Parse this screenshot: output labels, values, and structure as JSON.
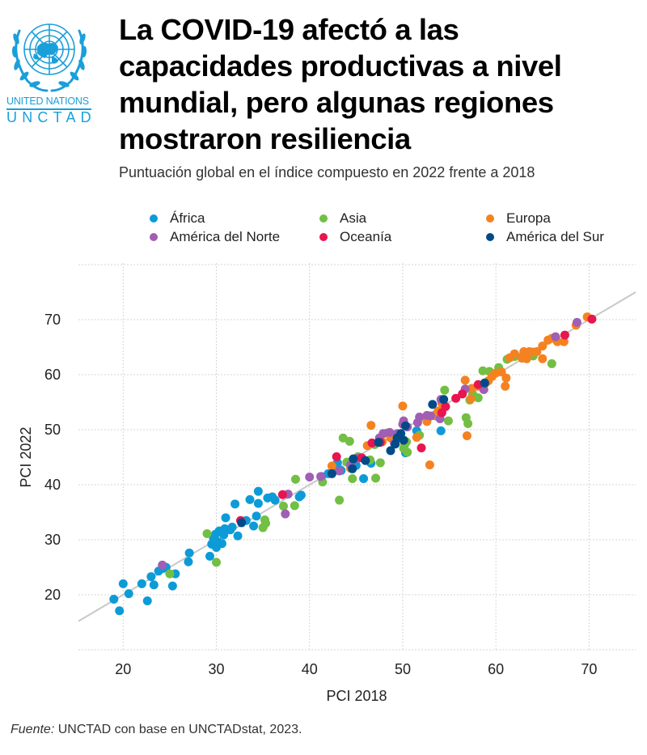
{
  "logo": {
    "line1": "UNITED NATIONS",
    "line2": "UNCTAD",
    "color": "#1a9fda",
    "icon": "un-emblem-icon"
  },
  "title": "La COVID-19 afectó a las capacidades productivas a nivel mundial, pero algunas regiones mostraron resiliencia",
  "subtitle": "Puntuación global en el índice compuesto en 2022 frente a 2018",
  "source": {
    "label": "Fuente:",
    "text": " UNCTAD con base en UNCTADstat, 2023."
  },
  "chart_data": {
    "type": "scatter",
    "title": "La COVID-19 afectó a las capacidades productivas a nivel mundial, pero algunas regiones mostraron resiliencia",
    "subtitle": "Puntuación global en el índice compuesto en 2022 frente a 2018",
    "xlabel": "PCI 2018",
    "ylabel": "PCI 2022",
    "xlim": [
      15.2,
      75
    ],
    "ylim": [
      10,
      80.3
    ],
    "xticks": [
      20,
      30,
      40,
      50,
      60,
      70
    ],
    "yticks": [
      20,
      30,
      40,
      50,
      60,
      70
    ],
    "grid": true,
    "legend_position": "top",
    "reference_line": {
      "label": "y = x",
      "color": "#c8c8c8"
    },
    "series": [
      {
        "name": "África",
        "color": "#0d9bd8",
        "points": [
          [
            19.0,
            19.2
          ],
          [
            19.6,
            17.1
          ],
          [
            20.0,
            22.0
          ],
          [
            20.6,
            20.2
          ],
          [
            22.0,
            22.0
          ],
          [
            22.6,
            18.9
          ],
          [
            23.0,
            23.3
          ],
          [
            23.3,
            21.8
          ],
          [
            23.8,
            24.3
          ],
          [
            24.3,
            24.8
          ],
          [
            24.6,
            25.0
          ],
          [
            25.3,
            21.6
          ],
          [
            25.6,
            23.8
          ],
          [
            27.0,
            26.0
          ],
          [
            27.1,
            27.6
          ],
          [
            29.3,
            27.0
          ],
          [
            29.5,
            29.2
          ],
          [
            29.7,
            30.2
          ],
          [
            29.9,
            31.0
          ],
          [
            30.0,
            28.6
          ],
          [
            30.2,
            29.6
          ],
          [
            30.3,
            31.6
          ],
          [
            30.6,
            29.3
          ],
          [
            30.8,
            30.9
          ],
          [
            30.9,
            32.0
          ],
          [
            31.0,
            34.0
          ],
          [
            31.5,
            31.8
          ],
          [
            31.7,
            32.3
          ],
          [
            32.0,
            36.5
          ],
          [
            32.3,
            30.7
          ],
          [
            33.2,
            33.5
          ],
          [
            33.6,
            37.3
          ],
          [
            34.0,
            32.5
          ],
          [
            34.3,
            34.3
          ],
          [
            34.5,
            38.8
          ],
          [
            34.5,
            36.6
          ],
          [
            35.5,
            37.6
          ],
          [
            36.0,
            37.8
          ],
          [
            36.3,
            37.2
          ],
          [
            38.9,
            37.8
          ],
          [
            39.1,
            38.1
          ],
          [
            41.3,
            41.5
          ],
          [
            42.0,
            42.0
          ],
          [
            42.6,
            43.4
          ],
          [
            43.0,
            44.0
          ],
          [
            43.4,
            42.6
          ],
          [
            44.3,
            44.1
          ],
          [
            45.0,
            43.5
          ],
          [
            45.8,
            41.1
          ],
          [
            46.6,
            43.9
          ],
          [
            50.3,
            45.8
          ],
          [
            54.1,
            49.8
          ],
          [
            51.5,
            49.8
          ],
          [
            49.3,
            48.7
          ]
        ]
      },
      {
        "name": "Asia",
        "color": "#72bf44",
        "points": [
          [
            25.0,
            23.8
          ],
          [
            29.0,
            31.1
          ],
          [
            30.0,
            25.9
          ],
          [
            35.0,
            32.2
          ],
          [
            35.2,
            33.6
          ],
          [
            35.3,
            33.0
          ],
          [
            37.2,
            36.1
          ],
          [
            38.4,
            36.2
          ],
          [
            38.5,
            41.0
          ],
          [
            41.4,
            40.5
          ],
          [
            43.2,
            37.2
          ],
          [
            43.6,
            48.5
          ],
          [
            44.0,
            44.1
          ],
          [
            44.3,
            47.9
          ],
          [
            44.6,
            41.1
          ],
          [
            45.2,
            45.1
          ],
          [
            46.5,
            44.5
          ],
          [
            47.0,
            47.3
          ],
          [
            47.1,
            41.2
          ],
          [
            47.6,
            44.0
          ],
          [
            48.3,
            49.4
          ],
          [
            49.6,
            48.8
          ],
          [
            50.1,
            46.6
          ],
          [
            50.2,
            47.2
          ],
          [
            50.4,
            47.8
          ],
          [
            50.5,
            45.9
          ],
          [
            51.8,
            49.0
          ],
          [
            53.5,
            52.5
          ],
          [
            54.2,
            53.5
          ],
          [
            54.5,
            57.2
          ],
          [
            54.9,
            51.6
          ],
          [
            56.8,
            52.2
          ],
          [
            57.0,
            51.1
          ],
          [
            57.2,
            55.4
          ],
          [
            57.5,
            56.5
          ],
          [
            58.1,
            55.8
          ],
          [
            58.6,
            60.7
          ],
          [
            59.3,
            60.6
          ],
          [
            60.3,
            61.3
          ],
          [
            61.2,
            62.8
          ],
          [
            62.0,
            63.3
          ],
          [
            62.8,
            63.3
          ],
          [
            64.0,
            63.4
          ],
          [
            66.0,
            62.0
          ]
        ]
      },
      {
        "name": "Europa",
        "color": "#f58220",
        "points": [
          [
            42.4,
            43.4
          ],
          [
            44.4,
            43.0
          ],
          [
            46.2,
            47.1
          ],
          [
            46.6,
            50.8
          ],
          [
            47.8,
            47.8
          ],
          [
            48.7,
            48.5
          ],
          [
            50.0,
            54.3
          ],
          [
            51.5,
            48.6
          ],
          [
            52.6,
            51.5
          ],
          [
            52.9,
            43.6
          ],
          [
            53.5,
            52.7
          ],
          [
            53.8,
            53.4
          ],
          [
            54.2,
            54.8
          ],
          [
            56.7,
            59.0
          ],
          [
            56.9,
            48.9
          ],
          [
            57.3,
            55.6
          ],
          [
            57.4,
            57.5
          ],
          [
            58.0,
            57.9
          ],
          [
            58.7,
            57.3
          ],
          [
            58.9,
            58.5
          ],
          [
            59.2,
            58.9
          ],
          [
            59.6,
            59.7
          ],
          [
            60.0,
            60.3
          ],
          [
            60.6,
            60.5
          ],
          [
            61.0,
            57.9
          ],
          [
            61.1,
            59.4
          ],
          [
            61.5,
            63.1
          ],
          [
            62.0,
            63.8
          ],
          [
            62.8,
            63.0
          ],
          [
            63.0,
            64.2
          ],
          [
            63.3,
            62.9
          ],
          [
            63.6,
            64.2
          ],
          [
            64.0,
            64.1
          ],
          [
            64.4,
            64.2
          ],
          [
            65.0,
            62.9
          ],
          [
            65.0,
            65.2
          ],
          [
            65.6,
            66.3
          ],
          [
            66.0,
            66.6
          ],
          [
            66.6,
            66.0
          ],
          [
            67.3,
            66.0
          ],
          [
            68.6,
            69.0
          ],
          [
            69.8,
            70.5
          ]
        ]
      },
      {
        "name": "América del Norte",
        "color": "#a05eb5",
        "points": [
          [
            24.2,
            25.4
          ],
          [
            37.4,
            34.7
          ],
          [
            37.7,
            38.3
          ],
          [
            40.0,
            41.4
          ],
          [
            41.2,
            41.5
          ],
          [
            43.2,
            42.5
          ],
          [
            44.4,
            43.6
          ],
          [
            45.2,
            44.8
          ],
          [
            47.5,
            48.5
          ],
          [
            47.9,
            49.3
          ],
          [
            48.6,
            49.5
          ],
          [
            49.1,
            47.5
          ],
          [
            49.4,
            49.3
          ],
          [
            50.0,
            51.0
          ],
          [
            50.1,
            51.6
          ],
          [
            50.5,
            50.5
          ],
          [
            51.6,
            51.3
          ],
          [
            51.8,
            52.3
          ],
          [
            52.6,
            52.6
          ],
          [
            53.0,
            52.5
          ],
          [
            54.0,
            52.0
          ],
          [
            54.1,
            55.5
          ],
          [
            56.7,
            57.4
          ],
          [
            58.7,
            57.3
          ],
          [
            66.4,
            66.9
          ],
          [
            68.7,
            69.5
          ]
        ]
      },
      {
        "name": "Oceanía",
        "color": "#e8154f",
        "points": [
          [
            32.6,
            33.5
          ],
          [
            37.1,
            38.2
          ],
          [
            42.9,
            45.1
          ],
          [
            45.6,
            44.9
          ],
          [
            46.7,
            47.6
          ],
          [
            47.6,
            47.7
          ],
          [
            52.0,
            46.7
          ],
          [
            54.2,
            53.1
          ],
          [
            54.6,
            54.2
          ],
          [
            55.7,
            55.7
          ],
          [
            56.4,
            56.5
          ],
          [
            58.1,
            58.2
          ],
          [
            67.4,
            67.2
          ],
          [
            70.3,
            70.1
          ]
        ]
      },
      {
        "name": "América del Sur",
        "color": "#004b87",
        "points": [
          [
            32.7,
            33.1
          ],
          [
            42.4,
            42.0
          ],
          [
            44.6,
            42.9
          ],
          [
            44.7,
            44.7
          ],
          [
            46.0,
            44.4
          ],
          [
            47.4,
            47.7
          ],
          [
            48.7,
            46.2
          ],
          [
            49.2,
            47.4
          ],
          [
            49.4,
            48.5
          ],
          [
            49.8,
            49.3
          ],
          [
            50.1,
            48.1
          ],
          [
            50.3,
            50.7
          ],
          [
            53.2,
            54.6
          ],
          [
            54.4,
            55.5
          ],
          [
            58.8,
            58.5
          ]
        ]
      }
    ]
  }
}
